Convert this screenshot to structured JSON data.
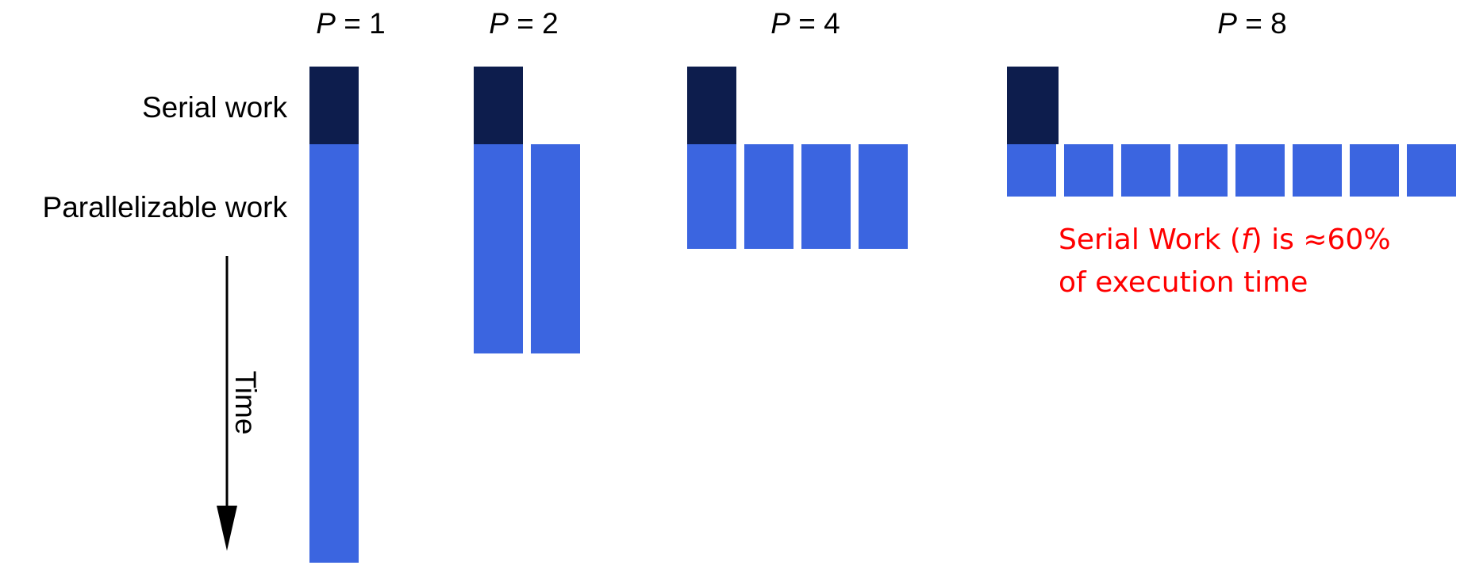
{
  "colors": {
    "serial": "#0d1d4d",
    "parallel": "#3b65e0",
    "text": "#000000",
    "note": "#ff0000"
  },
  "labels": {
    "serial_work": "Serial work",
    "parallelizable_work": "Parallelizable work",
    "time": "Time"
  },
  "panels": [
    {
      "prefix": "P",
      "equals": " = ",
      "value": "1",
      "processors": 1
    },
    {
      "prefix": "P",
      "equals": " = ",
      "value": "2",
      "processors": 2
    },
    {
      "prefix": "P",
      "equals": " = ",
      "value": "4",
      "processors": 4
    },
    {
      "prefix": "P",
      "equals": " = ",
      "value": "8",
      "processors": 8
    }
  ],
  "note": {
    "line1_a": "Serial Work (",
    "line1_f": "f",
    "line1_b": ") is ≈60%",
    "line2": "of execution time"
  }
}
